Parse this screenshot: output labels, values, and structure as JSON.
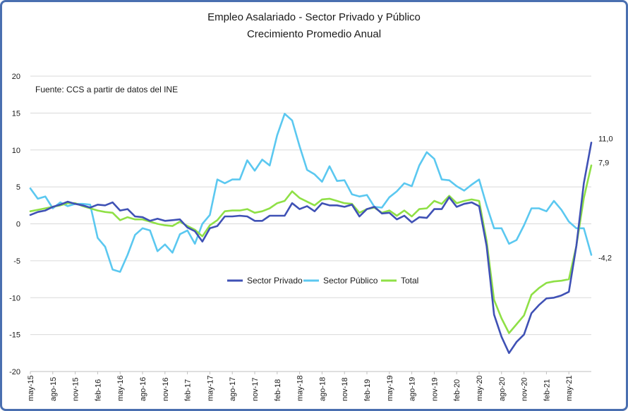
{
  "chart_data": {
    "type": "line",
    "title": "Empleo Asalariado - Sector Privado y Público",
    "subtitle": "Crecimiento Promedio Anual",
    "source_note": "Fuente: CCS a partir de datos del INE",
    "ylim": [
      -20,
      20
    ],
    "y_ticks": [
      "20",
      "15",
      "10",
      "5",
      "0",
      "-5",
      "-10",
      "-15",
      "-20"
    ],
    "x_tick_labels": [
      "may-15",
      "ago-15",
      "nov-15",
      "feb-16",
      "may-16",
      "ago-16",
      "nov-16",
      "feb-17",
      "may-17",
      "ago-17",
      "nov-17",
      "feb-18",
      "may-18",
      "ago-18",
      "nov-18",
      "feb-19",
      "may-19",
      "ago-19",
      "nov-19",
      "feb-20",
      "may-20",
      "ago-20",
      "nov-20",
      "feb-21",
      "may-21"
    ],
    "grid": "horizontal",
    "legend_position": "lower-center",
    "end_labels": [
      {
        "series": "Sector Privado",
        "text": "11,0"
      },
      {
        "series": "Total",
        "text": "7,9"
      },
      {
        "series": "Sector Público",
        "text": "-4,2"
      }
    ],
    "series": [
      {
        "name": "Sector Privado",
        "color": "#3f51b5",
        "values": [
          1.2,
          1.6,
          1.8,
          2.3,
          2.6,
          3.0,
          2.7,
          2.5,
          2.2,
          2.6,
          2.5,
          2.9,
          1.8,
          2.0,
          1.0,
          0.9,
          0.4,
          0.7,
          0.4,
          0.5,
          0.6,
          -0.5,
          -1.0,
          -2.4,
          -0.6,
          -0.3,
          1.0,
          1.0,
          1.1,
          1.0,
          0.4,
          0.4,
          1.1,
          1.1,
          1.1,
          2.8,
          2.0,
          2.4,
          1.7,
          2.8,
          2.5,
          2.5,
          2.3,
          2.6,
          1.0,
          2.0,
          2.3,
          1.4,
          1.5,
          0.6,
          1.1,
          0.2,
          0.9,
          0.8,
          2.0,
          2.0,
          3.6,
          2.3,
          2.7,
          2.9,
          2.4,
          -3.0,
          -12.3,
          -15.3,
          -17.5,
          -16.0,
          -15.0,
          -12.1,
          -11.0,
          -10.1,
          -10.0,
          -9.7,
          -9.2,
          -3.0,
          5.5,
          11.0
        ]
      },
      {
        "name": "Sector Público",
        "color": "#5bc8f0",
        "values": [
          4.8,
          3.4,
          3.7,
          2.1,
          2.9,
          2.4,
          2.7,
          2.7,
          2.6,
          -1.9,
          -3.1,
          -6.2,
          -6.5,
          -4.2,
          -1.5,
          -0.6,
          -0.9,
          -3.7,
          -2.8,
          -3.9,
          -1.4,
          -0.9,
          -2.7,
          0.0,
          1.2,
          6.0,
          5.5,
          6.0,
          6.0,
          8.6,
          7.2,
          8.7,
          7.9,
          12.0,
          14.9,
          14.0,
          10.5,
          7.3,
          6.7,
          5.7,
          7.8,
          5.8,
          5.9,
          4.0,
          3.7,
          3.9,
          2.3,
          2.2,
          3.6,
          4.4,
          5.5,
          5.1,
          7.9,
          9.7,
          8.8,
          6.0,
          5.9,
          5.1,
          4.5,
          5.3,
          6.0,
          2.5,
          -0.6,
          -0.6,
          -2.7,
          -2.2,
          -0.2,
          2.1,
          2.1,
          1.7,
          3.1,
          1.9,
          0.3,
          -0.6,
          -0.6,
          -4.2
        ]
      },
      {
        "name": "Total",
        "color": "#8fe046",
        "values": [
          1.7,
          1.9,
          2.1,
          2.3,
          2.5,
          2.8,
          2.8,
          2.4,
          2.1,
          1.8,
          1.6,
          1.5,
          0.5,
          0.9,
          0.6,
          0.6,
          0.3,
          0.0,
          -0.2,
          -0.3,
          0.3,
          -0.3,
          -0.8,
          -1.7,
          -0.2,
          0.5,
          1.7,
          1.8,
          1.8,
          2.0,
          1.5,
          1.7,
          2.1,
          2.8,
          3.1,
          4.4,
          3.5,
          3.0,
          2.5,
          3.3,
          3.4,
          3.1,
          2.8,
          2.7,
          1.5,
          2.0,
          2.2,
          1.5,
          1.8,
          1.1,
          1.8,
          1.0,
          2.0,
          2.1,
          3.1,
          2.7,
          3.8,
          2.8,
          3.1,
          3.3,
          3.1,
          -2.3,
          -10.3,
          -12.8,
          -14.8,
          -13.6,
          -12.4,
          -9.6,
          -8.7,
          -8.0,
          -7.8,
          -7.7,
          -7.5,
          -3.0,
          3.5,
          7.9
        ]
      }
    ]
  }
}
